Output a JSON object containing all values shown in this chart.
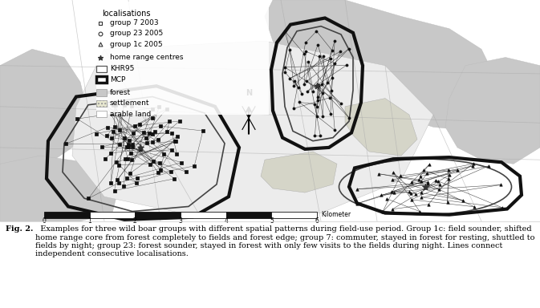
{
  "fig_width": 6.73,
  "fig_height": 3.84,
  "dpi": 100,
  "bg_color": "#ffffff",
  "map_bg": "#e0e0e0",
  "caption_bold": "Fig. 2.",
  "caption_rest": "  Examples for three wild boar groups with different spatial patterns during field-use period. Group 1c: field sounder, shifted home range core from forest completely to fields and forest edge; group 7: commuter, stayed in forest for resting, shuttled to fields by night; group 23: forest sounder, stayed in forest with only few visits to the fields during night. Lines connect independent consecutive localisations.",
  "legend_title": "localisations",
  "leg_g7": "group 7 2003",
  "leg_g23": "group 23 2005",
  "leg_g1c": "group 1c 2005",
  "leg_hrc": "home range centres",
  "leg_khr": "KHR95",
  "leg_mcp": "MCP",
  "leg_forest": "forest",
  "leg_settlement": "settlement",
  "leg_arable": "arable land",
  "north_label": "N"
}
